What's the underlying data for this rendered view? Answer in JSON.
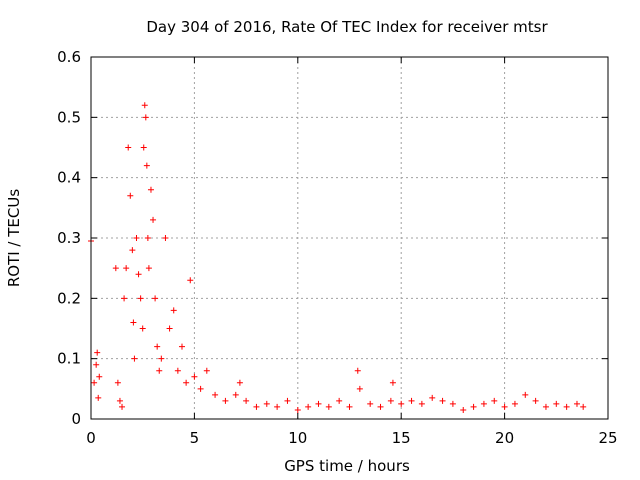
{
  "chart_data": {
    "type": "scatter",
    "title": "Day 304 of 2016, Rate Of TEC Index for receiver mtsr",
    "xlabel": "GPS time / hours",
    "ylabel": "ROTI / TECUs",
    "xlim": [
      0,
      25
    ],
    "ylim": [
      0,
      0.6
    ],
    "xticks": [
      0,
      5,
      10,
      15,
      20,
      25
    ],
    "xtick_labels": [
      "0",
      "5",
      "10",
      "15",
      "20",
      "25"
    ],
    "yticks": [
      0,
      0.1,
      0.2,
      0.3,
      0.4,
      0.5,
      0.6
    ],
    "ytick_labels": [
      "0",
      "0.1",
      "0.2",
      "0.3",
      "0.4",
      "0.5",
      "0.6"
    ],
    "grid": true,
    "marker": "+",
    "color": "#ff0000",
    "series": [
      {
        "name": "ROTI",
        "x": [
          0.0,
          0.15,
          0.25,
          0.3,
          0.35,
          0.4,
          1.2,
          1.3,
          1.4,
          1.5,
          1.6,
          1.7,
          1.8,
          1.9,
          2.0,
          2.05,
          2.1,
          2.2,
          2.3,
          2.4,
          2.5,
          2.55,
          2.6,
          2.65,
          2.7,
          2.75,
          2.8,
          2.9,
          3.0,
          3.1,
          3.2,
          3.3,
          3.4,
          3.6,
          3.8,
          4.0,
          4.2,
          4.4,
          4.6,
          4.8,
          5.0,
          5.3,
          5.6,
          6.0,
          6.5,
          7.0,
          7.2,
          7.5,
          8.0,
          8.5,
          9.0,
          9.5,
          10.0,
          10.5,
          11.0,
          11.5,
          12.0,
          12.5,
          12.9,
          13.0,
          13.5,
          14.0,
          14.5,
          14.6,
          15.0,
          15.5,
          16.0,
          16.5,
          17.0,
          17.5,
          18.0,
          18.5,
          19.0,
          19.5,
          20.0,
          20.5,
          21.0,
          21.5,
          22.0,
          22.5,
          23.0,
          23.5,
          23.8
        ],
        "y": [
          0.295,
          0.06,
          0.09,
          0.11,
          0.035,
          0.07,
          0.25,
          0.06,
          0.03,
          0.02,
          0.2,
          0.25,
          0.45,
          0.37,
          0.28,
          0.16,
          0.1,
          0.3,
          0.24,
          0.2,
          0.15,
          0.45,
          0.52,
          0.5,
          0.42,
          0.3,
          0.25,
          0.38,
          0.33,
          0.2,
          0.12,
          0.08,
          0.1,
          0.3,
          0.15,
          0.18,
          0.08,
          0.12,
          0.06,
          0.23,
          0.07,
          0.05,
          0.08,
          0.04,
          0.03,
          0.04,
          0.06,
          0.03,
          0.02,
          0.025,
          0.02,
          0.03,
          0.015,
          0.02,
          0.025,
          0.02,
          0.03,
          0.02,
          0.08,
          0.05,
          0.025,
          0.02,
          0.03,
          0.06,
          0.025,
          0.03,
          0.025,
          0.035,
          0.03,
          0.025,
          0.015,
          0.02,
          0.025,
          0.03,
          0.02,
          0.025,
          0.04,
          0.03,
          0.02,
          0.025,
          0.02,
          0.025,
          0.02
        ]
      }
    ]
  }
}
